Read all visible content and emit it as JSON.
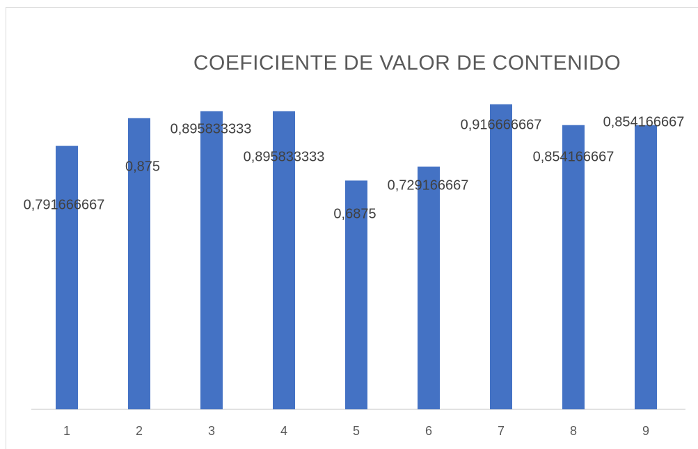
{
  "chart_data": {
    "type": "bar",
    "title": "COEFICIENTE  DE VALOR DE CONTENIDO",
    "categories": [
      "1",
      "2",
      "3",
      "4",
      "5",
      "6",
      "7",
      "8",
      "9"
    ],
    "values": [
      0.791666667,
      0.875,
      0.895833333,
      0.895833333,
      0.6875,
      0.729166667,
      0.916666667,
      0.854166667,
      0.854166667
    ],
    "value_labels": [
      "0,791666667",
      "0,875",
      "0,895833333",
      "0,895833333",
      "0,6875",
      "0,729166667",
      "0,916666667",
      "0,854166667",
      "0,854166667"
    ],
    "color": "#4472c4",
    "ylim": [
      0,
      1
    ],
    "grid": false
  }
}
